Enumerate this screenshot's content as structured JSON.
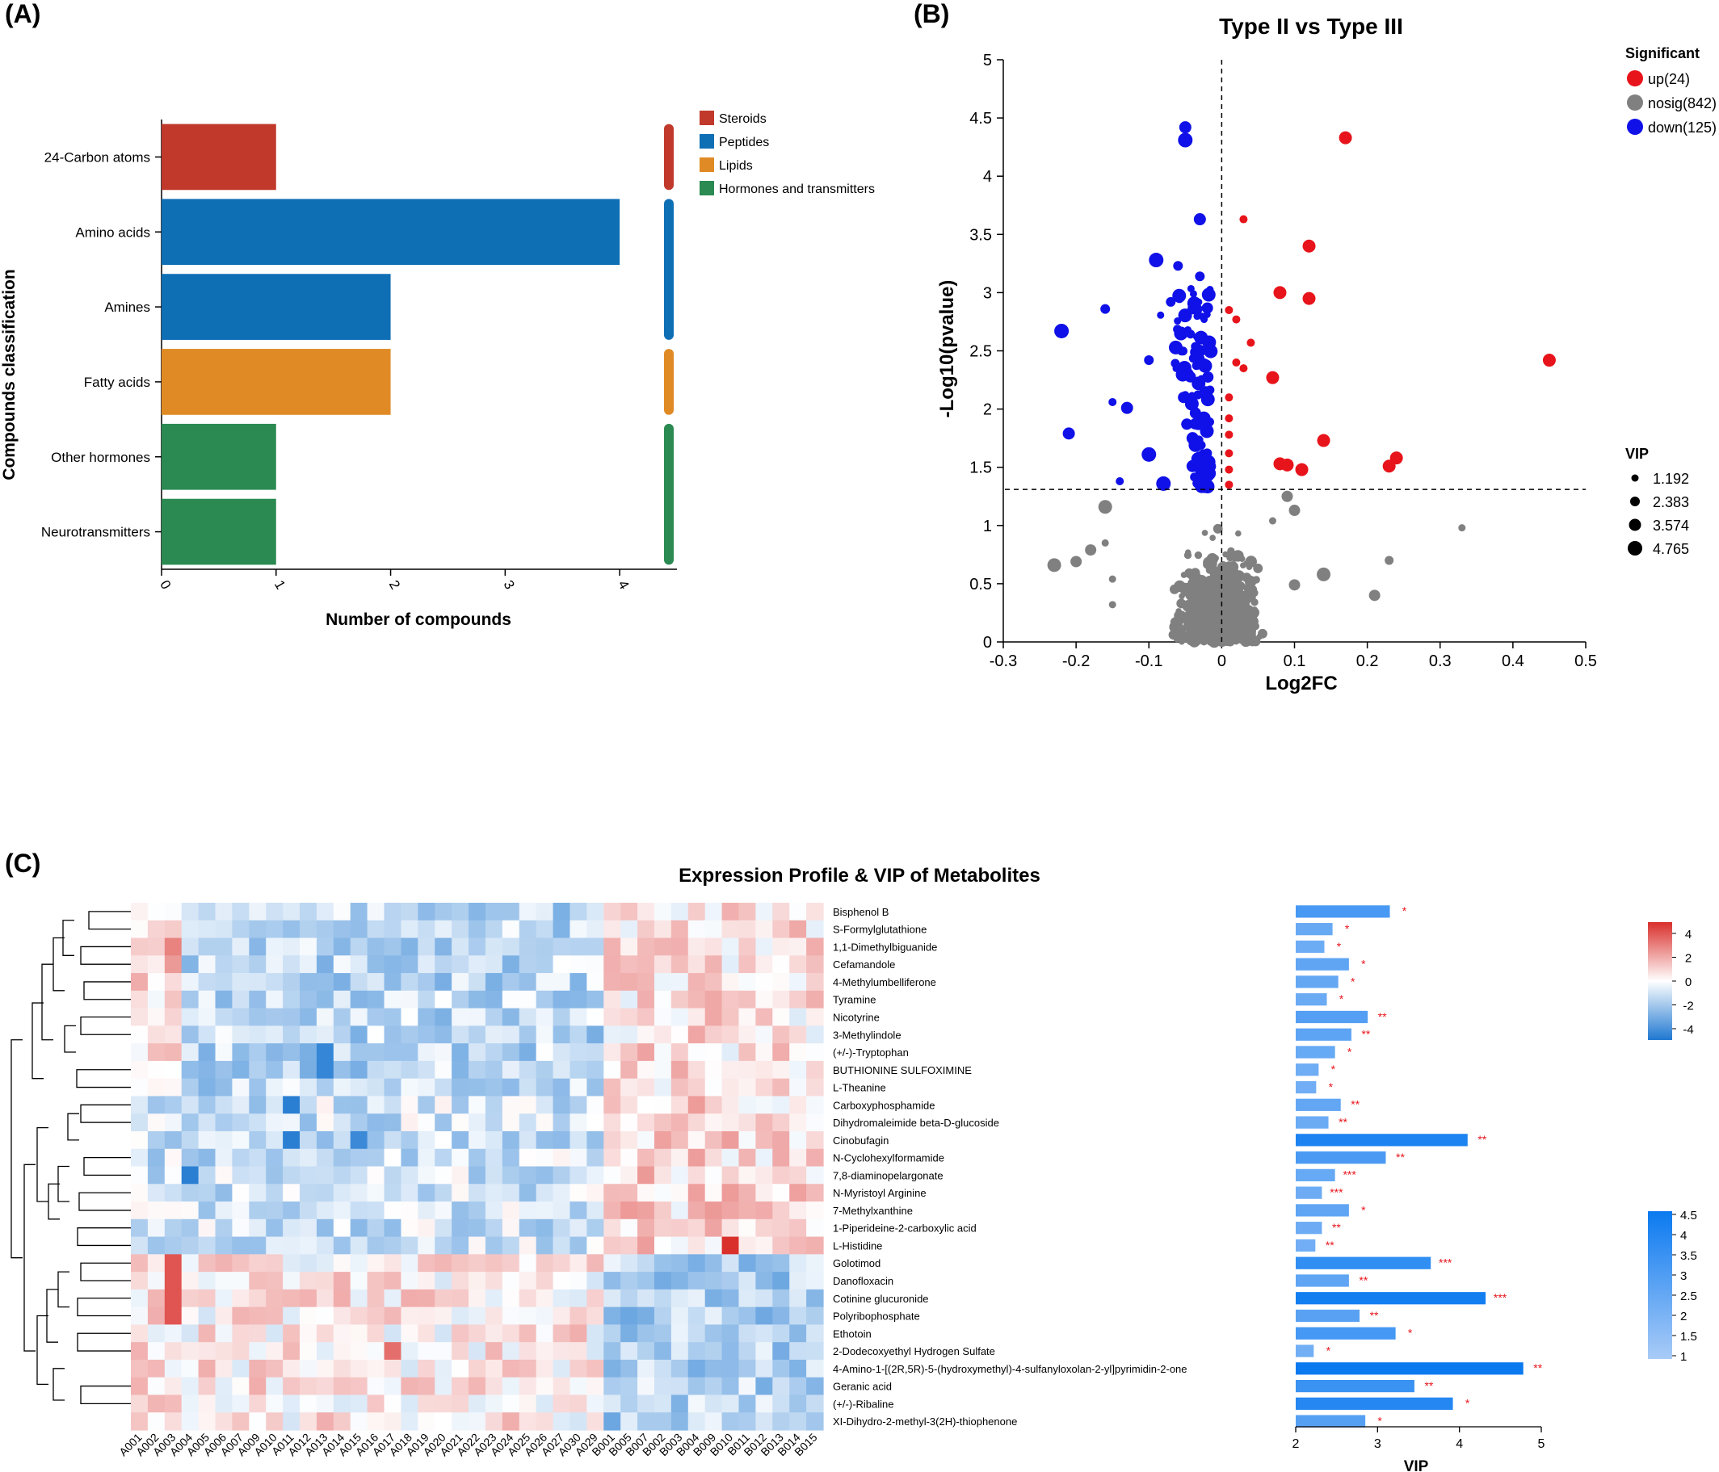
{
  "panels": {
    "a": "(A)",
    "b": "(B)",
    "c": "(C)"
  },
  "chart_data": [
    {
      "panel": "(A)",
      "type": "bar",
      "orientation": "horizontal",
      "xlabel": "Number of compounds",
      "ylabel": "Compounds classification",
      "xlim": [
        0,
        4.5
      ],
      "xticks": [
        0,
        1,
        2,
        3,
        4
      ],
      "categories": [
        "24-Carbon atoms",
        "Amino acids",
        "Amines",
        "Fatty acids",
        "Other hormones",
        "Neurotransmitters"
      ],
      "values": [
        1,
        4,
        2,
        2,
        1,
        1
      ],
      "groups": [
        "Steroids",
        "Peptides",
        "Peptides",
        "Lipids",
        "Hormones and transmitters",
        "Hormones and transmitters"
      ],
      "legend": [
        {
          "name": "Steroids",
          "color": "#c0392b"
        },
        {
          "name": "Peptides",
          "color": "#0f6fb5"
        },
        {
          "name": "Lipids",
          "color": "#e08a25"
        },
        {
          "name": "Hormones and transmitters",
          "color": "#2a8a52"
        }
      ],
      "legend_position": "top-right",
      "group_spans": [
        {
          "group": "Steroids",
          "from": 0,
          "to": 0
        },
        {
          "group": "Peptides",
          "from": 1,
          "to": 2
        },
        {
          "group": "Lipids",
          "from": 3,
          "to": 3
        },
        {
          "group": "Hormones and transmitters",
          "from": 4,
          "to": 5
        }
      ]
    },
    {
      "panel": "(B)",
      "type": "scatter",
      "title": "Type II vs Type III",
      "xlabel": "Log2FC",
      "ylabel": "-Log10(pvalue)",
      "xlim": [
        -0.3,
        0.5
      ],
      "ylim": [
        0,
        5
      ],
      "xticks": [
        -0.3,
        -0.2,
        -0.1,
        0,
        0.1,
        0.2,
        0.3,
        0.4,
        0.5
      ],
      "yticks": [
        0,
        0.5,
        1,
        1.5,
        2,
        2.5,
        3,
        3.5,
        4,
        4.5,
        5
      ],
      "threshold_y": 1.31,
      "threshold_x": 0,
      "legend_title": "Significant",
      "legend": [
        {
          "name": "up(24)",
          "color": "#e8141b"
        },
        {
          "name": "nosig(842)",
          "color": "#808080"
        },
        {
          "name": "down(125)",
          "color": "#1010e8"
        }
      ],
      "size_legend_title": "VIP",
      "size_legend": [
        "1.192",
        "2.383",
        "3.574",
        "4.765"
      ],
      "up_points": [
        [
          0.17,
          4.33
        ],
        [
          0.45,
          2.42
        ],
        [
          0.12,
          3.4
        ],
        [
          0.12,
          2.95
        ],
        [
          0.08,
          3.0
        ],
        [
          0.03,
          3.63
        ],
        [
          0.14,
          1.73
        ],
        [
          0.24,
          1.58
        ],
        [
          0.23,
          1.51
        ],
        [
          0.09,
          1.52
        ],
        [
          0.11,
          1.48
        ],
        [
          0.01,
          2.85
        ],
        [
          0.02,
          2.77
        ],
        [
          0.04,
          2.57
        ],
        [
          0.03,
          2.35
        ],
        [
          0.07,
          2.27
        ],
        [
          0.01,
          1.92
        ],
        [
          0.01,
          1.78
        ],
        [
          0.01,
          1.62
        ],
        [
          0.01,
          1.48
        ],
        [
          0.01,
          1.35
        ],
        [
          0.01,
          2.1
        ],
        [
          0.08,
          1.53
        ],
        [
          0.02,
          2.4
        ]
      ],
      "down_points": [
        [
          -0.05,
          4.42
        ],
        [
          -0.05,
          4.31
        ],
        [
          -0.03,
          3.63
        ],
        [
          -0.09,
          3.28
        ],
        [
          -0.06,
          3.23
        ],
        [
          -0.03,
          3.14
        ],
        [
          -0.22,
          2.67
        ],
        [
          -0.16,
          2.86
        ],
        [
          -0.21,
          1.79
        ],
        [
          -0.15,
          2.06
        ],
        [
          -0.13,
          2.01
        ],
        [
          -0.1,
          1.61
        ],
        [
          -0.14,
          1.38
        ],
        [
          -0.08,
          1.36
        ],
        [
          -0.04,
          1.51
        ],
        [
          -0.02,
          1.62
        ],
        [
          -0.05,
          2.12
        ],
        [
          -0.03,
          2.5
        ],
        [
          -0.07,
          2.92
        ],
        [
          -0.1,
          2.42
        ],
        [
          -0.04,
          1.75
        ]
      ],
      "down_cloud": {
        "count": 104,
        "x": [
          -0.13,
          -0.01
        ],
        "y": [
          1.32,
          3.05
        ]
      },
      "nosig_points": [
        [
          0.33,
          0.98
        ],
        [
          0.23,
          0.7
        ],
        [
          0.21,
          0.4
        ],
        [
          0.14,
          0.58
        ],
        [
          -0.23,
          0.66
        ],
        [
          -0.2,
          0.69
        ],
        [
          -0.18,
          0.79
        ],
        [
          -0.16,
          0.85
        ],
        [
          -0.16,
          1.16
        ],
        [
          -0.15,
          0.54
        ],
        [
          -0.15,
          0.32
        ],
        [
          0.09,
          1.25
        ],
        [
          0.1,
          1.13
        ],
        [
          0.07,
          1.04
        ],
        [
          0.1,
          0.49
        ]
      ],
      "nosig_cloud": {
        "count": 827,
        "x": [
          -0.14,
          0.11
        ],
        "y": [
          0.0,
          1.3
        ]
      }
    },
    {
      "panel": "(C)",
      "type": "heatmap",
      "title": "Expression Profile & VIP of Metabolites",
      "columns": [
        "A001",
        "A002",
        "A003",
        "A004",
        "A005",
        "A006",
        "A007",
        "A009",
        "A010",
        "A011",
        "A012",
        "A013",
        "A014",
        "A015",
        "A016",
        "A017",
        "A018",
        "A019",
        "A020",
        "A021",
        "A022",
        "A023",
        "A024",
        "A025",
        "A026",
        "A027",
        "A030",
        "A029",
        "B001",
        "B005",
        "B007",
        "B002",
        "B003",
        "B004",
        "B009",
        "B010",
        "B011",
        "B012",
        "B013",
        "B014",
        "B015"
      ],
      "rows": [
        "Bisphenol B",
        "S-Formylglutathione",
        "1,1-Dimethylbiguanide",
        "Cefamandole",
        "4-Methylumbelliferone",
        "Tyramine",
        "Nicotyrine",
        "3-Methylindole",
        "(+/-)-Tryptophan",
        "BUTHIONINE SULFOXIMINE",
        "L-Theanine",
        "Carboxyphosphamide",
        "Dihydromaleimide beta-D-glucoside",
        "Cinobufagin",
        "N-Cyclohexylformamide",
        "7,8-diaminopelargonate",
        "N-Myristoyl Arginine",
        "7-Methylxanthine",
        "1-Piperideine-2-carboxylic acid",
        "L-Histidine",
        "Golotimod",
        "Danofloxacin",
        "Cotinine glucuronide",
        "Polyribophosphate",
        "Ethotoin",
        "2-Dodecoxyethyl Hydrogen Sulfate",
        "4-Amino-1-[(2R,5R)-5-(hydroxymethyl)-4-sulfanyloxolan-2-yl]pyrimidin-2-one",
        "Geranic acid",
        "(+/-)-Ribaline",
        "XI-Dihydro-2-methyl-3(2H)-thiophenone"
      ],
      "vip": [
        3.15,
        2.45,
        2.35,
        2.65,
        2.52,
        2.38,
        2.88,
        2.68,
        2.48,
        2.28,
        2.25,
        2.55,
        2.4,
        4.1,
        3.1,
        2.48,
        2.32,
        2.65,
        2.32,
        2.24,
        3.65,
        2.65,
        4.32,
        2.78,
        3.22,
        2.22,
        4.78,
        3.45,
        3.92,
        2.85
      ],
      "significance": [
        "*",
        "*",
        "*",
        "*",
        "*",
        "*",
        "**",
        "**",
        "*",
        "*",
        "*",
        "**",
        "**",
        "**",
        "**",
        "***",
        "***",
        "*",
        "**",
        "**",
        "***",
        "**",
        "***",
        "**",
        "*",
        "*",
        "**",
        "**",
        "*",
        "*"
      ],
      "vip_axis": {
        "label": "VIP",
        "lim": [
          2,
          5
        ],
        "ticks": [
          2,
          3,
          4,
          5
        ]
      },
      "color_scale": {
        "lim": [
          -4,
          4
        ],
        "ticks": [
          "4",
          "2",
          "0",
          "-2",
          "-4"
        ],
        "low": "#1f78d1",
        "mid": "#ffffff",
        "high": "#d9302c"
      },
      "vip_color_scale": {
        "lim": [
          1,
          4.5
        ],
        "ticks": [
          "4.5",
          "4",
          "3.5",
          "3",
          "2.5",
          "2",
          "1.5",
          "1"
        ],
        "low": "#a9cbf7",
        "high": "#0b7af0"
      }
    }
  ]
}
